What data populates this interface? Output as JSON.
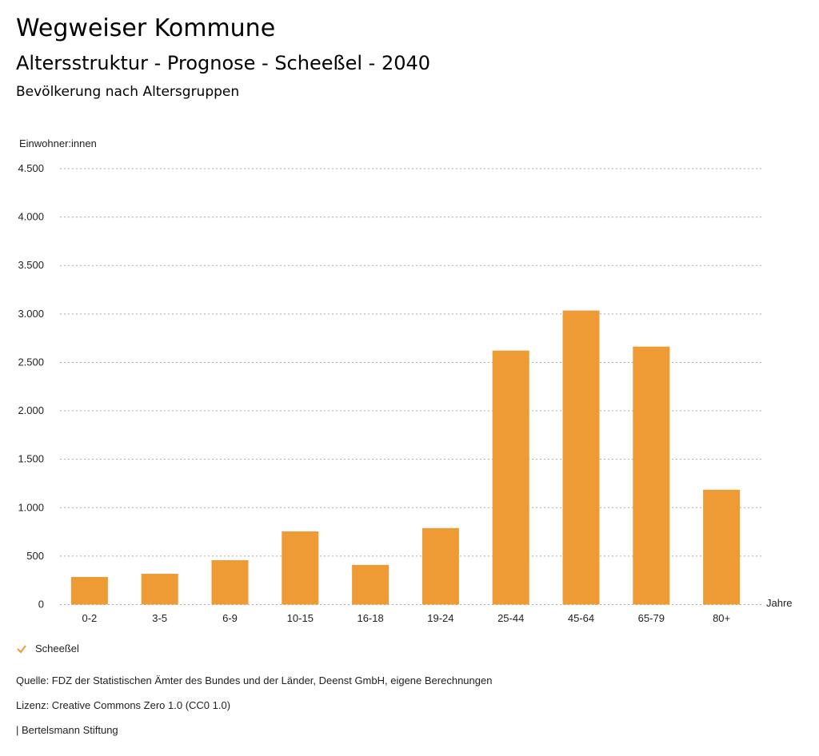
{
  "header": {
    "title": "Wegweiser Kommune",
    "subtitle": "Altersstruktur - Prognose - Scheeßel - 2040",
    "chart_title": "Bevölkerung nach Altersgruppen"
  },
  "chart_data": {
    "type": "bar",
    "title": "Bevölkerung nach Altersgruppen",
    "ylabel": "Einwohner:innen",
    "xlabel": "Jahre",
    "categories": [
      "0-2",
      "3-5",
      "6-9",
      "10-15",
      "16-18",
      "19-24",
      "25-44",
      "45-64",
      "65-79",
      "80+"
    ],
    "series": [
      {
        "name": "Scheeßel",
        "values": [
          285,
          318,
          458,
          755,
          409,
          789,
          2622,
          3035,
          2663,
          1185
        ],
        "color": "#ee9a35"
      }
    ],
    "ylim": [
      0,
      4500
    ],
    "yticks": [
      0,
      500,
      1000,
      1500,
      2000,
      2500,
      3000,
      3500,
      4000,
      4500
    ],
    "ytick_labels": [
      "0",
      "500",
      "1.000",
      "1.500",
      "2.000",
      "2.500",
      "3.000",
      "3.500",
      "4.000",
      "4.500"
    ],
    "grid": true,
    "legend_position": "bottom-left"
  },
  "legend": {
    "label": "Scheeßel"
  },
  "footer": {
    "source": "Quelle: FDZ der Statistischen Ämter des Bundes und der Länder, Deenst GmbH, eigene Berechnungen",
    "license": "Lizenz: Creative Commons Zero 1.0 (CC0 1.0)",
    "publisher": "| Bertelsmann Stiftung"
  }
}
